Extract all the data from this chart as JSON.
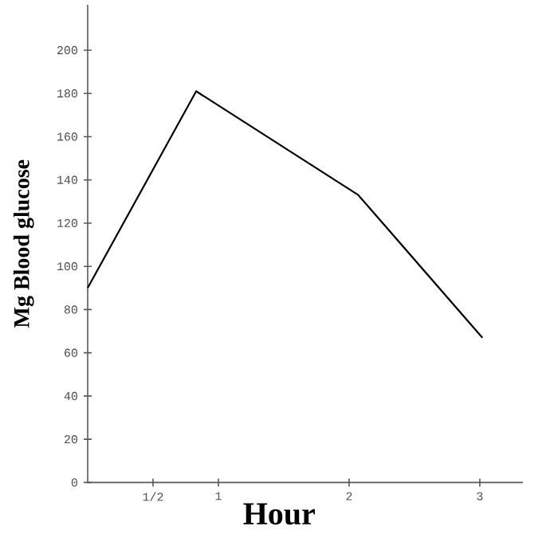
{
  "chart_data": {
    "type": "line",
    "xlabel": "Hour",
    "ylabel": "Mg Blood glucose",
    "x": [
      0,
      0.83,
      2.07,
      3.02
    ],
    "values": [
      90,
      181,
      133,
      67
    ],
    "color": "#000000",
    "xlim": [
      0,
      3.33
    ],
    "ylim": [
      0,
      221
    ],
    "xticks": [
      {
        "value": 0.5,
        "label": "1/2"
      },
      1,
      2,
      3
    ],
    "yticks": [
      0,
      20,
      40,
      60,
      80,
      100,
      120,
      140,
      160,
      180,
      200
    ]
  }
}
